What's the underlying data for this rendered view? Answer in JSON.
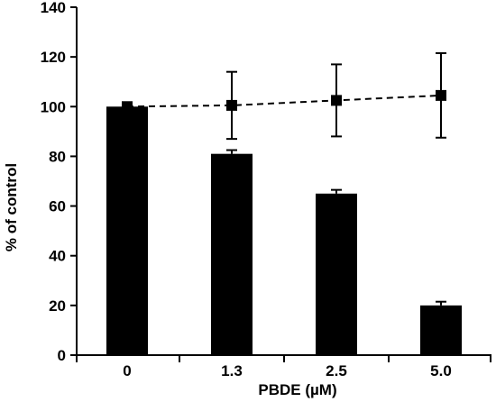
{
  "chart_data": {
    "type": "bar",
    "xlabel": "PBDE (µM)",
    "ylabel": "% of control",
    "ylim": [
      0,
      140
    ],
    "yticks": [
      0,
      20,
      40,
      60,
      80,
      100,
      120,
      140
    ],
    "categories": [
      "0",
      "1.3",
      "2.5",
      "5.0"
    ],
    "grid": false,
    "legend": "none",
    "series": [
      {
        "type": "bar",
        "values": [
          100,
          81,
          65,
          20
        ],
        "errors": [
          1.5,
          1.5,
          1.5,
          1.5
        ],
        "color": "#000000"
      },
      {
        "type": "line",
        "style": "dashed",
        "marker": "square",
        "values": [
          100,
          100.5,
          102.5,
          104.5
        ],
        "errors": [
          0,
          13.5,
          14.5,
          17
        ],
        "color": "#000000"
      }
    ]
  }
}
